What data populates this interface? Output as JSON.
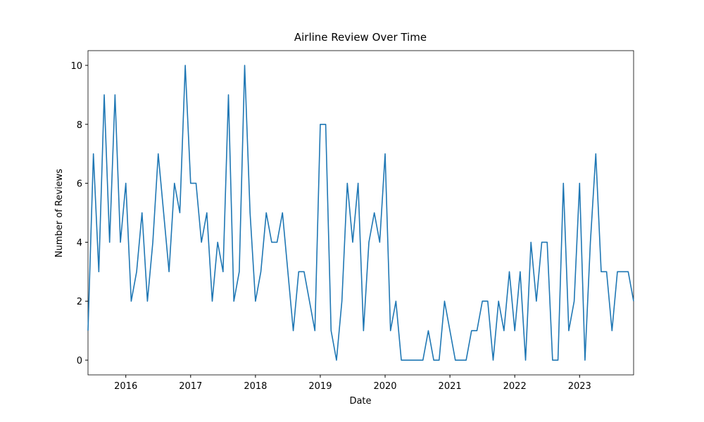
{
  "chart_data": {
    "type": "line",
    "title": "Airline Review Over Time",
    "xlabel": "Date",
    "ylabel": "Number of Reviews",
    "x": [
      "2015-06",
      "2015-07",
      "2015-08",
      "2015-09",
      "2015-10",
      "2015-11",
      "2015-12",
      "2016-01",
      "2016-02",
      "2016-03",
      "2016-04",
      "2016-05",
      "2016-06",
      "2016-07",
      "2016-08",
      "2016-09",
      "2016-10",
      "2016-11",
      "2016-12",
      "2017-01",
      "2017-02",
      "2017-03",
      "2017-04",
      "2017-05",
      "2017-06",
      "2017-07",
      "2017-08",
      "2017-09",
      "2017-10",
      "2017-11",
      "2017-12",
      "2018-01",
      "2018-02",
      "2018-03",
      "2018-04",
      "2018-05",
      "2018-06",
      "2018-07",
      "2018-08",
      "2018-09",
      "2018-10",
      "2018-11",
      "2018-12",
      "2019-01",
      "2019-02",
      "2019-03",
      "2019-04",
      "2019-05",
      "2019-06",
      "2019-07",
      "2019-08",
      "2019-09",
      "2019-10",
      "2019-11",
      "2019-12",
      "2020-01",
      "2020-02",
      "2020-03",
      "2020-04",
      "2020-05",
      "2020-06",
      "2020-07",
      "2020-08",
      "2020-09",
      "2020-10",
      "2020-11",
      "2020-12",
      "2021-01",
      "2021-02",
      "2021-03",
      "2021-04",
      "2021-05",
      "2021-06",
      "2021-07",
      "2021-08",
      "2021-09",
      "2021-10",
      "2021-11",
      "2021-12",
      "2022-01",
      "2022-02",
      "2022-03",
      "2022-04",
      "2022-05",
      "2022-06",
      "2022-07",
      "2022-08",
      "2022-09",
      "2022-10",
      "2022-11",
      "2022-12",
      "2023-01",
      "2023-02",
      "2023-03",
      "2023-04",
      "2023-05",
      "2023-06",
      "2023-07",
      "2023-08",
      "2023-09",
      "2023-10",
      "2023-11"
    ],
    "series": [
      {
        "name": "Number of Reviews",
        "color": "#1f77b4",
        "values": [
          1,
          7,
          3,
          9,
          4,
          9,
          4,
          6,
          2,
          3,
          5,
          2,
          4,
          7,
          5,
          3,
          6,
          5,
          10,
          6,
          6,
          4,
          5,
          2,
          4,
          3,
          9,
          2,
          3,
          10,
          5,
          2,
          3,
          5,
          4,
          4,
          5,
          3,
          1,
          3,
          3,
          2,
          1,
          8,
          8,
          1,
          0,
          2,
          6,
          4,
          6,
          1,
          4,
          5,
          4,
          7,
          1,
          2,
          0,
          0,
          0,
          0,
          0,
          1,
          0,
          0,
          2,
          1,
          0,
          0,
          0,
          1,
          1,
          2,
          2,
          0,
          2,
          1,
          3,
          1,
          3,
          0,
          4,
          2,
          4,
          4,
          0,
          0,
          6,
          1,
          2,
          6,
          0,
          4,
          7,
          3,
          3,
          1,
          3,
          3,
          3,
          2
        ]
      }
    ],
    "xlim": [
      "2015-06",
      "2023-11"
    ],
    "xticks": [
      {
        "value": "2016-01",
        "label": "2016"
      },
      {
        "value": "2017-01",
        "label": "2017"
      },
      {
        "value": "2018-01",
        "label": "2018"
      },
      {
        "value": "2019-01",
        "label": "2019"
      },
      {
        "value": "2020-01",
        "label": "2020"
      },
      {
        "value": "2021-01",
        "label": "2021"
      },
      {
        "value": "2022-01",
        "label": "2022"
      },
      {
        "value": "2023-01",
        "label": "2023"
      }
    ],
    "ylim": [
      -0.5,
      10.5
    ],
    "yticks": [
      0,
      2,
      4,
      6,
      8,
      10
    ],
    "grid": false
  }
}
